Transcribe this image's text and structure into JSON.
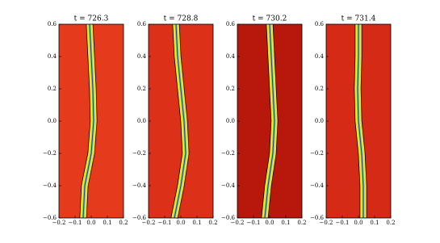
{
  "chart_data": [
    {
      "type": "field",
      "title": "t = 726.3",
      "color": "#e63a1c",
      "xlim": [
        -0.2,
        0.2
      ],
      "ylim": [
        -0.6,
        0.6
      ],
      "xticks": [
        {
          "value": -0.2,
          "label": "−0.2"
        },
        {
          "value": -0.1,
          "label": "−0.1"
        },
        {
          "value": 0,
          "label": "0.0"
        },
        0.1,
        0.2
      ],
      "yticks": [
        {
          "value": -0.6,
          "label": "−0.6"
        },
        {
          "value": -0.4,
          "label": "−0.4"
        },
        {
          "value": -0.2,
          "label": "−0.2"
        },
        {
          "value": 0,
          "label": "0.0"
        },
        0.2,
        0.4,
        0.6
      ]
    },
    {
      "type": "field",
      "title": "t = 728.8",
      "color": "#dc3018",
      "xlim": [
        -0.2,
        0.2
      ],
      "ylim": [
        -0.6,
        0.6
      ],
      "xticks": [
        {
          "value": -0.2,
          "label": "−0.2"
        },
        {
          "value": -0.1,
          "label": "−0.1"
        },
        {
          "value": 0,
          "label": "0.0"
        },
        0.1,
        0.2
      ],
      "yticks": [
        {
          "value": -0.6,
          "label": "−0.6"
        },
        {
          "value": -0.4,
          "label": "−0.4"
        },
        {
          "value": -0.2,
          "label": "−0.2"
        },
        {
          "value": 0,
          "label": "0.0"
        },
        0.2,
        0.4,
        0.6
      ]
    },
    {
      "type": "field",
      "title": "t = 730.2",
      "color": "#b8180c",
      "xlim": [
        -0.2,
        0.2
      ],
      "ylim": [
        -0.6,
        0.6
      ],
      "xticks": [
        {
          "value": -0.2,
          "label": "−0.2"
        },
        {
          "value": -0.1,
          "label": "−0.1"
        },
        {
          "value": 0,
          "label": "0.0"
        },
        0.1,
        0.2
      ],
      "yticks": [
        {
          "value": -0.6,
          "label": "−0.6"
        },
        {
          "value": -0.4,
          "label": "−0.4"
        },
        {
          "value": -0.2,
          "label": "−0.2"
        },
        {
          "value": 0,
          "label": "0.0"
        },
        0.2,
        0.4,
        0.6
      ]
    },
    {
      "type": "field",
      "title": "t = 731.4",
      "color": "#d42a16",
      "xlim": [
        -0.2,
        0.2
      ],
      "ylim": [
        -0.6,
        0.6
      ],
      "xticks": [
        {
          "value": -0.2,
          "label": "−0.2"
        },
        {
          "value": -0.1,
          "label": "−0.1"
        },
        {
          "value": 0,
          "label": "0.0"
        },
        0.1,
        0.2
      ],
      "yticks": [
        {
          "value": -0.6,
          "label": "−0.6"
        },
        {
          "value": -0.4,
          "label": "−0.4"
        },
        {
          "value": -0.2,
          "label": "−0.2"
        },
        {
          "value": 0,
          "label": "0.0"
        },
        0.2,
        0.4,
        0.6
      ]
    }
  ]
}
